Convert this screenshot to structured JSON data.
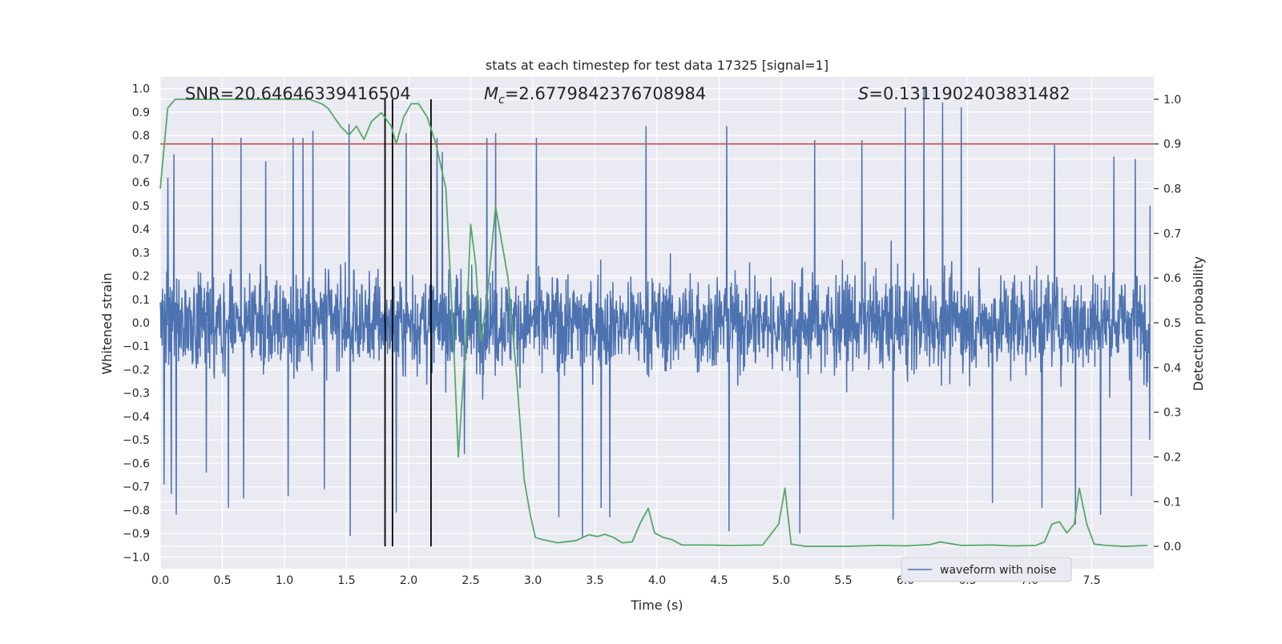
{
  "chart_data": {
    "type": "line",
    "title": "stats at each timestep for test data 17325 [signal=1]",
    "xlabel": "Time (s)",
    "ylabel": "Whitened strain",
    "y2label": "Detection probability",
    "xlim": [
      0.0,
      8.0
    ],
    "ylim": [
      -1.05,
      1.05
    ],
    "y2lim": [
      -0.05,
      1.05
    ],
    "xticks": [
      "0.0",
      "0.5",
      "1.0",
      "1.5",
      "2.0",
      "2.5",
      "3.0",
      "3.5",
      "4.0",
      "4.5",
      "5.0",
      "5.5",
      "6.0",
      "6.5",
      "7.0",
      "7.5"
    ],
    "xtick_values": [
      0,
      0.5,
      1,
      1.5,
      2,
      2.5,
      3,
      3.5,
      4,
      4.5,
      5,
      5.5,
      6,
      6.5,
      7,
      7.5
    ],
    "yticks": [
      "1.0",
      "0.9",
      "0.8",
      "0.7",
      "0.6",
      "0.5",
      "0.4",
      "0.3",
      "0.2",
      "0.1",
      "0.0",
      "−0.1",
      "−0.2",
      "−0.3",
      "−0.4",
      "−0.5",
      "−0.6",
      "−0.7",
      "−0.8",
      "−0.9",
      "−1.0"
    ],
    "ytick_values": [
      1,
      0.9,
      0.8,
      0.7,
      0.6,
      0.5,
      0.4,
      0.3,
      0.2,
      0.1,
      0,
      -0.1,
      -0.2,
      -0.3,
      -0.4,
      -0.5,
      -0.6,
      -0.7,
      -0.8,
      -0.9,
      -1.0
    ],
    "y2ticks": [
      "1.0",
      "0.9",
      "0.8",
      "0.7",
      "0.6",
      "0.5",
      "0.4",
      "0.3",
      "0.2",
      "0.1",
      "0.0"
    ],
    "y2tick_values": [
      1,
      0.9,
      0.8,
      0.7,
      0.6,
      0.5,
      0.4,
      0.3,
      0.2,
      0.1,
      0
    ],
    "annotations": {
      "snr": "SNR=20.64646339416504",
      "mc_symbol": "M",
      "mc_sub": "c",
      "mc_value": "=2.6779842376708984",
      "s_symbol": "S",
      "s_value": "=0.1311902403831482"
    },
    "threshold": {
      "value": 0.9,
      "axis": "y2",
      "color": "#c44e52"
    },
    "vertical_lines": [
      1.81,
      1.87,
      2.18
    ],
    "waveform": {
      "name": "waveform with noise",
      "color": "#4c72b0",
      "typical_amplitude": 0.3,
      "tail_min": -0.5,
      "tail_max": 0.5,
      "peaks": [
        {
          "t": 0.03,
          "v": -0.69
        },
        {
          "t": 0.06,
          "v": 0.62
        },
        {
          "t": 0.09,
          "v": -0.73
        },
        {
          "t": 0.11,
          "v": 0.72
        },
        {
          "t": 0.13,
          "v": -0.82
        },
        {
          "t": 0.37,
          "v": -0.64
        },
        {
          "t": 0.42,
          "v": 0.79
        },
        {
          "t": 0.55,
          "v": -0.79
        },
        {
          "t": 0.65,
          "v": 0.79
        },
        {
          "t": 0.67,
          "v": -0.75
        },
        {
          "t": 0.85,
          "v": 0.69
        },
        {
          "t": 1.03,
          "v": -0.74
        },
        {
          "t": 1.07,
          "v": 0.79
        },
        {
          "t": 1.15,
          "v": 0.79
        },
        {
          "t": 1.23,
          "v": 0.82
        },
        {
          "t": 1.32,
          "v": -0.71
        },
        {
          "t": 1.52,
          "v": 0.85
        },
        {
          "t": 1.53,
          "v": -0.91
        },
        {
          "t": 1.9,
          "v": -0.81
        },
        {
          "t": 1.98,
          "v": 0.81
        },
        {
          "t": 2.23,
          "v": 0.79
        },
        {
          "t": 2.27,
          "v": 0.73
        },
        {
          "t": 2.45,
          "v": -0.56
        },
        {
          "t": 2.63,
          "v": 0.79
        },
        {
          "t": 2.7,
          "v": 0.81
        },
        {
          "t": 3.03,
          "v": 0.79
        },
        {
          "t": 3.21,
          "v": -0.83
        },
        {
          "t": 3.4,
          "v": -0.92
        },
        {
          "t": 3.55,
          "v": -0.79
        },
        {
          "t": 3.62,
          "v": -0.83
        },
        {
          "t": 3.91,
          "v": 0.84
        },
        {
          "t": 4.56,
          "v": 0.84
        },
        {
          "t": 4.58,
          "v": -0.89
        },
        {
          "t": 5.15,
          "v": -0.9
        },
        {
          "t": 5.27,
          "v": 0.78
        },
        {
          "t": 5.65,
          "v": 0.78
        },
        {
          "t": 5.9,
          "v": -0.84
        },
        {
          "t": 6.0,
          "v": 0.92
        },
        {
          "t": 6.15,
          "v": 1.01
        },
        {
          "t": 6.3,
          "v": 0.94
        },
        {
          "t": 6.45,
          "v": 0.92
        },
        {
          "t": 6.7,
          "v": -0.77
        },
        {
          "t": 7.1,
          "v": -0.79
        },
        {
          "t": 7.2,
          "v": 0.76
        },
        {
          "t": 7.37,
          "v": -0.86
        },
        {
          "t": 7.57,
          "v": -0.82
        },
        {
          "t": 7.68,
          "v": 0.71
        },
        {
          "t": 7.82,
          "v": -0.74
        },
        {
          "t": 7.85,
          "v": 0.7
        }
      ]
    },
    "detection_probability": {
      "color": "#55a868",
      "points": [
        [
          0.0,
          0.8
        ],
        [
          0.06,
          0.98
        ],
        [
          0.12,
          1.0
        ],
        [
          0.5,
          1.0
        ],
        [
          1.0,
          1.0
        ],
        [
          1.2,
          1.0
        ],
        [
          1.3,
          0.99
        ],
        [
          1.35,
          0.98
        ],
        [
          1.45,
          0.94
        ],
        [
          1.52,
          0.92
        ],
        [
          1.58,
          0.94
        ],
        [
          1.64,
          0.91
        ],
        [
          1.7,
          0.95
        ],
        [
          1.78,
          0.97
        ],
        [
          1.86,
          0.94
        ],
        [
          1.9,
          0.9
        ],
        [
          1.96,
          0.96
        ],
        [
          2.02,
          0.99
        ],
        [
          2.08,
          0.99
        ],
        [
          2.15,
          0.96
        ],
        [
          2.22,
          0.9
        ],
        [
          2.3,
          0.8
        ],
        [
          2.36,
          0.47
        ],
        [
          2.4,
          0.2
        ],
        [
          2.46,
          0.46
        ],
        [
          2.5,
          0.72
        ],
        [
          2.54,
          0.63
        ],
        [
          2.58,
          0.46
        ],
        [
          2.63,
          0.55
        ],
        [
          2.7,
          0.76
        ],
        [
          2.8,
          0.6
        ],
        [
          2.87,
          0.38
        ],
        [
          2.93,
          0.15
        ],
        [
          2.98,
          0.07
        ],
        [
          3.02,
          0.02
        ],
        [
          3.08,
          0.015
        ],
        [
          3.2,
          0.008
        ],
        [
          3.35,
          0.013
        ],
        [
          3.45,
          0.026
        ],
        [
          3.52,
          0.022
        ],
        [
          3.58,
          0.027
        ],
        [
          3.65,
          0.02
        ],
        [
          3.72,
          0.008
        ],
        [
          3.8,
          0.01
        ],
        [
          3.87,
          0.055
        ],
        [
          3.93,
          0.085
        ],
        [
          3.98,
          0.03
        ],
        [
          4.05,
          0.02
        ],
        [
          4.12,
          0.015
        ],
        [
          4.2,
          0.003
        ],
        [
          4.4,
          0.003
        ],
        [
          4.6,
          0.002
        ],
        [
          4.85,
          0.003
        ],
        [
          4.98,
          0.05
        ],
        [
          5.03,
          0.13
        ],
        [
          5.08,
          0.005
        ],
        [
          5.2,
          0.0
        ],
        [
          5.5,
          0.0
        ],
        [
          5.8,
          0.002
        ],
        [
          6.0,
          0.001
        ],
        [
          6.2,
          0.004
        ],
        [
          6.28,
          0.01
        ],
        [
          6.45,
          0.002
        ],
        [
          6.7,
          0.003
        ],
        [
          6.85,
          0.001
        ],
        [
          7.05,
          0.002
        ],
        [
          7.12,
          0.01
        ],
        [
          7.18,
          0.05
        ],
        [
          7.24,
          0.055
        ],
        [
          7.3,
          0.03
        ],
        [
          7.36,
          0.05
        ],
        [
          7.4,
          0.13
        ],
        [
          7.46,
          0.05
        ],
        [
          7.52,
          0.005
        ],
        [
          7.62,
          0.002
        ],
        [
          7.75,
          0.0
        ],
        [
          7.95,
          0.002
        ]
      ]
    },
    "legend": {
      "entries": [
        "waveform with noise"
      ],
      "position": "lower-right"
    }
  }
}
